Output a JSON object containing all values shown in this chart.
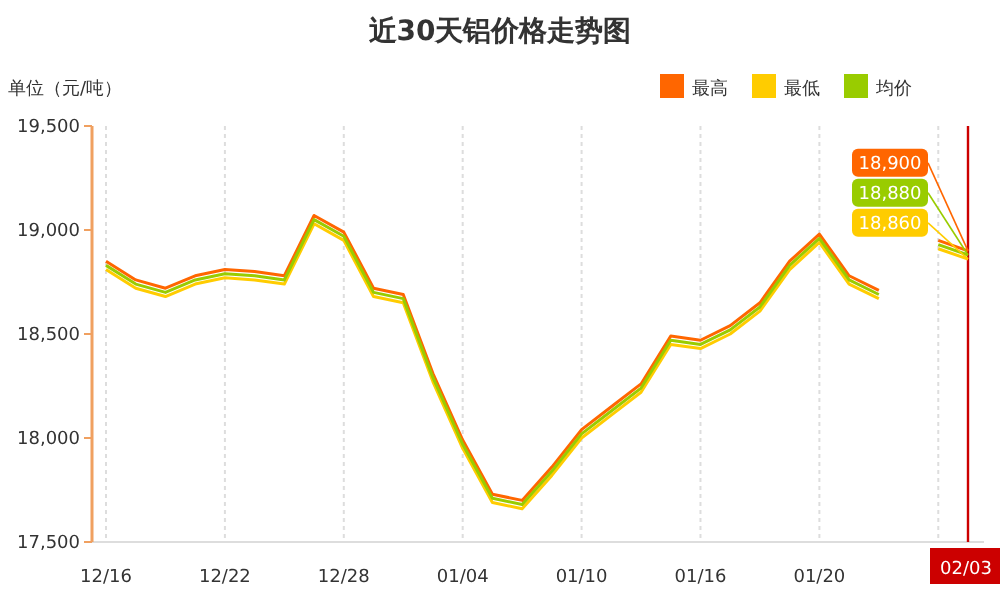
{
  "chart_data": {
    "type": "line",
    "title": "近30天铝价格走势图",
    "ylabel": "单位（元/吨）",
    "categories": [
      "12/16",
      null,
      null,
      null,
      "12/22",
      null,
      null,
      null,
      "12/28",
      null,
      null,
      null,
      "01/04",
      null,
      null,
      null,
      "01/10",
      null,
      null,
      null,
      "01/16",
      null,
      null,
      null,
      "01/20",
      null,
      null,
      null,
      null,
      "02/03"
    ],
    "series": [
      {
        "name": "最高",
        "color": "#ff6600",
        "values": [
          18850,
          18760,
          18720,
          18780,
          18810,
          18800,
          18780,
          19070,
          18990,
          18720,
          18690,
          18310,
          17990,
          17730,
          17700,
          17860,
          18040,
          18150,
          18260,
          18490,
          18470,
          18540,
          18650,
          18850,
          18980,
          18780,
          18710,
          null,
          18950,
          18900
        ],
        "value_labels": [
          null,
          null,
          null,
          null,
          null,
          null,
          null,
          null,
          null,
          null,
          null,
          null,
          null,
          null,
          null,
          null,
          null,
          null,
          null,
          null,
          null,
          null,
          null,
          null,
          null,
          null,
          null,
          null,
          null,
          "18,900"
        ]
      },
      {
        "name": "最低",
        "color": "#ffcc00",
        "values": [
          18810,
          18720,
          18680,
          18740,
          18770,
          18760,
          18740,
          19030,
          18950,
          18680,
          18650,
          18270,
          17950,
          17690,
          17660,
          17820,
          18000,
          18110,
          18220,
          18450,
          18430,
          18500,
          18610,
          18810,
          18940,
          18740,
          18670,
          null,
          18910,
          18860
        ],
        "value_labels": [
          null,
          null,
          null,
          null,
          null,
          null,
          null,
          null,
          null,
          null,
          null,
          null,
          null,
          null,
          null,
          null,
          null,
          null,
          null,
          null,
          null,
          null,
          null,
          null,
          null,
          null,
          null,
          null,
          null,
          "18,860"
        ]
      },
      {
        "name": "均价",
        "color": "#99cc00",
        "values": [
          18830,
          18740,
          18700,
          18760,
          18790,
          18780,
          18760,
          19050,
          18970,
          18700,
          18670,
          18290,
          17970,
          17710,
          17680,
          17840,
          18020,
          18130,
          18240,
          18470,
          18450,
          18520,
          18630,
          18830,
          18960,
          18760,
          18690,
          null,
          18930,
          18880
        ],
        "value_labels": [
          null,
          null,
          null,
          null,
          null,
          null,
          null,
          null,
          null,
          null,
          null,
          null,
          null,
          null,
          null,
          null,
          null,
          null,
          null,
          null,
          null,
          null,
          null,
          null,
          null,
          null,
          null,
          null,
          null,
          "18,880"
        ]
      }
    ],
    "ylim": [
      17500,
      19500
    ],
    "yticks": [
      {
        "value": 17500,
        "label": "17,500"
      },
      {
        "value": 18000,
        "label": "18,000"
      },
      {
        "value": 18500,
        "label": "18,500"
      },
      {
        "value": 19000,
        "label": "19,000"
      },
      {
        "value": 19500,
        "label": "19,500"
      }
    ],
    "grid": "x",
    "legend": "top right",
    "marker": "none",
    "line_style": "solid",
    "ref_lines": [
      {
        "axis": "x",
        "value": "02/03",
        "color": "#cc0000"
      }
    ]
  }
}
